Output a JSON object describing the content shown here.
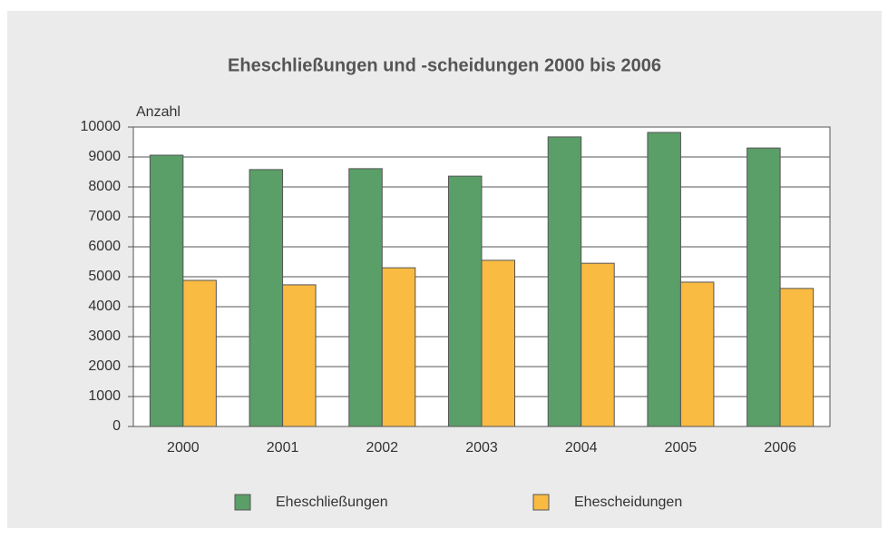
{
  "chart_data": {
    "type": "bar",
    "title": "Eheschließungen und -scheidungen 2000 bis 2006",
    "y_label": "Anzahl",
    "categories": [
      "2000",
      "2001",
      "2002",
      "2003",
      "2004",
      "2005",
      "2006"
    ],
    "series": [
      {
        "name": "Eheschließungen",
        "color": "#5a9e68",
        "values": [
          9060,
          8580,
          8610,
          8360,
          9670,
          9820,
          9300
        ]
      },
      {
        "name": "Ehescheidungen",
        "color": "#f9bb42",
        "values": [
          4880,
          4730,
          5300,
          5550,
          5450,
          4820,
          4610
        ]
      }
    ],
    "ylim": [
      0,
      10000
    ],
    "yticks": [
      0,
      1000,
      2000,
      3000,
      4000,
      5000,
      6000,
      7000,
      8000,
      9000,
      10000
    ],
    "grid": true
  }
}
